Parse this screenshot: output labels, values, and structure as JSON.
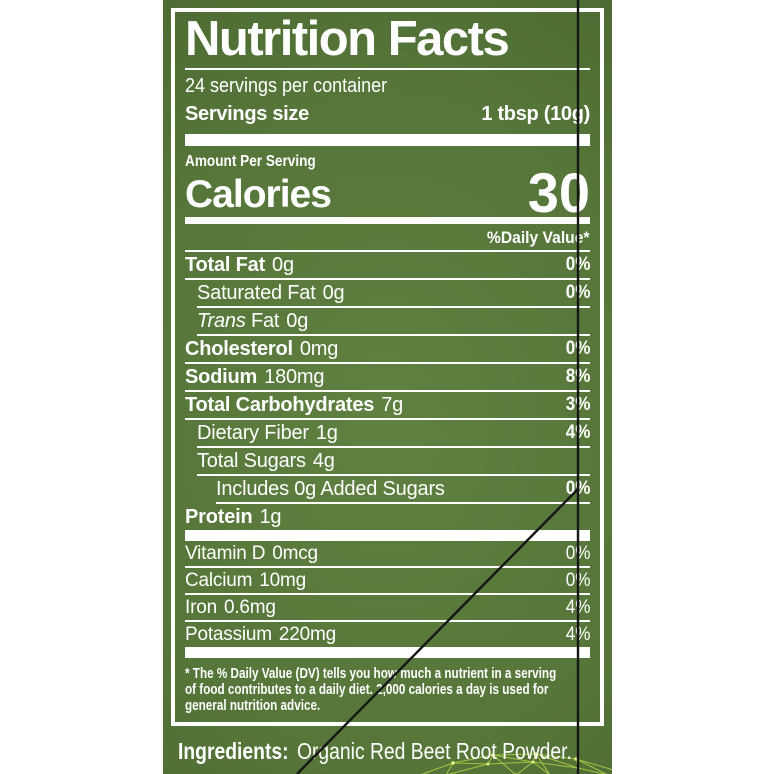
{
  "label": {
    "title": "Nutrition Facts",
    "servings_per_container": "24 servings per container",
    "serving_size_label": "Servings size",
    "serving_size_value": "1 tbsp (10g)",
    "amount_per_serving": "Amount Per Serving",
    "calories_label": "Calories",
    "calories_value": "30",
    "daily_value_header": "%Daily Value*",
    "nutrients": [
      {
        "name": "Total Fat",
        "amount": "0g",
        "dv": "0%",
        "bold": true,
        "indent": 0
      },
      {
        "name": "Saturated Fat",
        "amount": "0g",
        "dv": "0%",
        "bold": false,
        "indent": 1
      },
      {
        "name": "Trans Fat",
        "amount": "0g",
        "dv": "",
        "bold": false,
        "indent": 1,
        "italic_first": true
      },
      {
        "name": "Cholesterol",
        "amount": "0mg",
        "dv": "0%",
        "bold": true,
        "indent": 0
      },
      {
        "name": "Sodium",
        "amount": "180mg",
        "dv": "8%",
        "bold": true,
        "indent": 0
      },
      {
        "name": "Total Carbohydrates",
        "amount": "7g",
        "dv": "3%",
        "bold": true,
        "indent": 0
      },
      {
        "name": "Dietary Fiber",
        "amount": "1g",
        "dv": "4%",
        "bold": false,
        "indent": 1
      },
      {
        "name": "Total Sugars",
        "amount": "4g",
        "dv": "",
        "bold": false,
        "indent": 1
      },
      {
        "name": "Includes 0g Added Sugars",
        "amount": "",
        "dv": "0%",
        "bold": false,
        "indent": 2
      },
      {
        "name": "Protein",
        "amount": "1g",
        "dv": "",
        "bold": true,
        "indent": 0,
        "last": true
      }
    ],
    "micronutrients": [
      {
        "name": "Vitamin D",
        "amount": "0mcg",
        "dv": "0%"
      },
      {
        "name": "Calcium",
        "amount": "10mg",
        "dv": "0%"
      },
      {
        "name": "Iron",
        "amount": "0.6mg",
        "dv": "4%"
      },
      {
        "name": "Potassium",
        "amount": "220mg",
        "dv": "4%"
      }
    ],
    "footnote_lines": [
      "* The % Daily Value (DV) tells you how much a nutrient in a serving",
      "of food contributes to a daily diet. 2,000 calories a day is used for",
      "general nutrition advice."
    ],
    "ingredients_label": "Ingredients:",
    "ingredients_value": "Organic Red Beet Root Powder."
  },
  "colors": {
    "panel_green_center": "#5f8141",
    "panel_green_edge": "#3d5b27",
    "text_white": "#ffffff",
    "crop_line_black": "#161616",
    "mesh_green": "#a6c544",
    "mesh_dot_yellow": "#ecf584"
  }
}
